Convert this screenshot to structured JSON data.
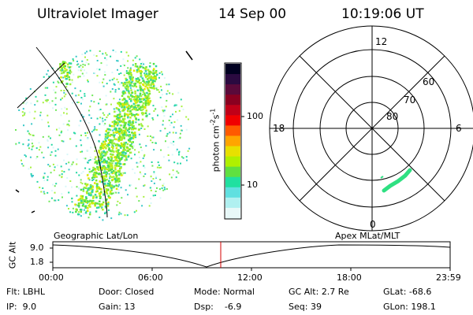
{
  "header": {
    "instrument": "Ultraviolet Imager",
    "date": "14 Sep 00",
    "time": "10:19:06 UT"
  },
  "colorbar": {
    "unit_text": "photon cm",
    "unit_exp1": "-2",
    "unit_s": "s",
    "unit_exp2": "-1",
    "ticks": [
      "100",
      "10"
    ],
    "colors": [
      "#000020",
      "#2a0a40",
      "#5a0a3a",
      "#8a0020",
      "#c00018",
      "#f00000",
      "#ff5a00",
      "#ffa500",
      "#e8e000",
      "#b0f000",
      "#60e040",
      "#20e0a0",
      "#60e0e0",
      "#b0f0f0",
      "#e8f8f8"
    ]
  },
  "polar_plot": {
    "mlt_labels": {
      "top": "12",
      "bottom": "0",
      "left": "18",
      "right": "6"
    },
    "lat_labels": [
      "60",
      "70",
      "80"
    ]
  },
  "map_labels": {
    "left": "Geographic Lat/Lon",
    "right": "Apex  MLat/MLT"
  },
  "altitude_plot": {
    "ylabel": "GC Alt",
    "y_ticks": [
      "9.0",
      "1.8"
    ],
    "x_ticks": [
      "00:00",
      "06:00",
      "12:00",
      "18:00",
      "23:59"
    ]
  },
  "footer": {
    "row1": [
      {
        "key": "Flt:",
        "value": "LBHL"
      },
      {
        "key": "Door:",
        "value": "Closed"
      },
      {
        "key": "Mode:",
        "value": "Normal"
      },
      {
        "key": "GC Alt:",
        "value": "2.7 Re"
      },
      {
        "key": "GLat:",
        "value": "-68.6"
      }
    ],
    "row2": [
      {
        "key": "IP:",
        "value": "9.0"
      },
      {
        "key": "Gain:",
        "value": "13"
      },
      {
        "key": "Dsp:",
        "value": "-6.9"
      },
      {
        "key": "Seq:",
        "value": "39"
      },
      {
        "key": "GLon:",
        "value": "198.1"
      }
    ]
  }
}
